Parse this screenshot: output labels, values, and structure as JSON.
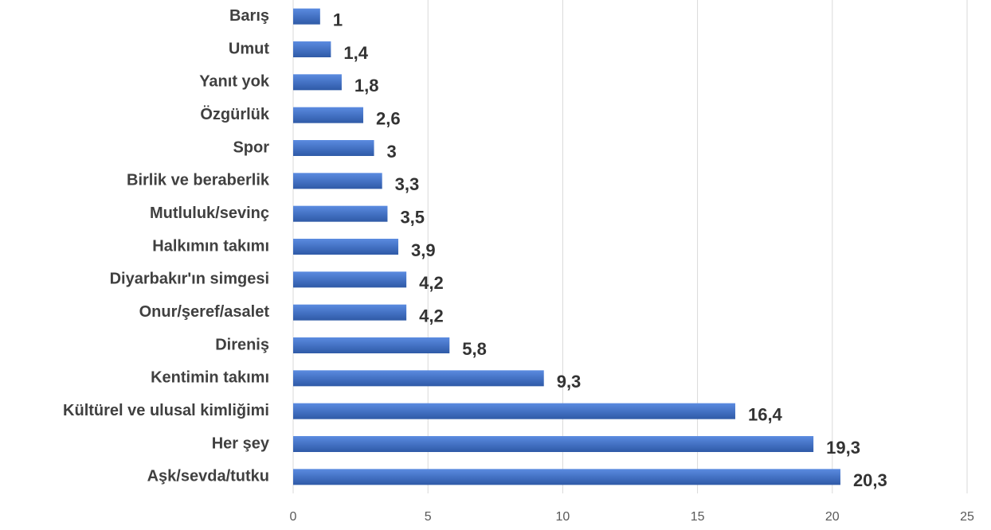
{
  "chart_data": {
    "type": "bar",
    "orientation": "horizontal",
    "categories": [
      "Barış",
      "Umut",
      "Yanıt yok",
      "Özgürlük",
      "Spor",
      "Birlik ve beraberlik",
      "Mutluluk/sevinç",
      "Halkımın takımı",
      "Diyarbakır'ın simgesi",
      "Onur/şeref/asalet",
      "Direniş",
      "Kentimin takımı",
      "Kültürel ve ulusal kimliğimi",
      "Her şey",
      "Aşk/sevda/tutku"
    ],
    "values": [
      1,
      1.4,
      1.8,
      2.6,
      3,
      3.3,
      3.5,
      3.9,
      4.2,
      4.2,
      5.8,
      9.3,
      16.4,
      19.3,
      20.3
    ],
    "value_labels": [
      "1",
      "1,4",
      "1,8",
      "2,6",
      "3",
      "3,3",
      "3,5",
      "3,9",
      "4,2",
      "4,2",
      "5,8",
      "9,3",
      "16,4",
      "19,3",
      "20,3"
    ],
    "color": "#4472c4",
    "xlim": [
      0,
      25
    ],
    "xticks": [
      0,
      5,
      10,
      15,
      20,
      25
    ],
    "grid": true
  }
}
